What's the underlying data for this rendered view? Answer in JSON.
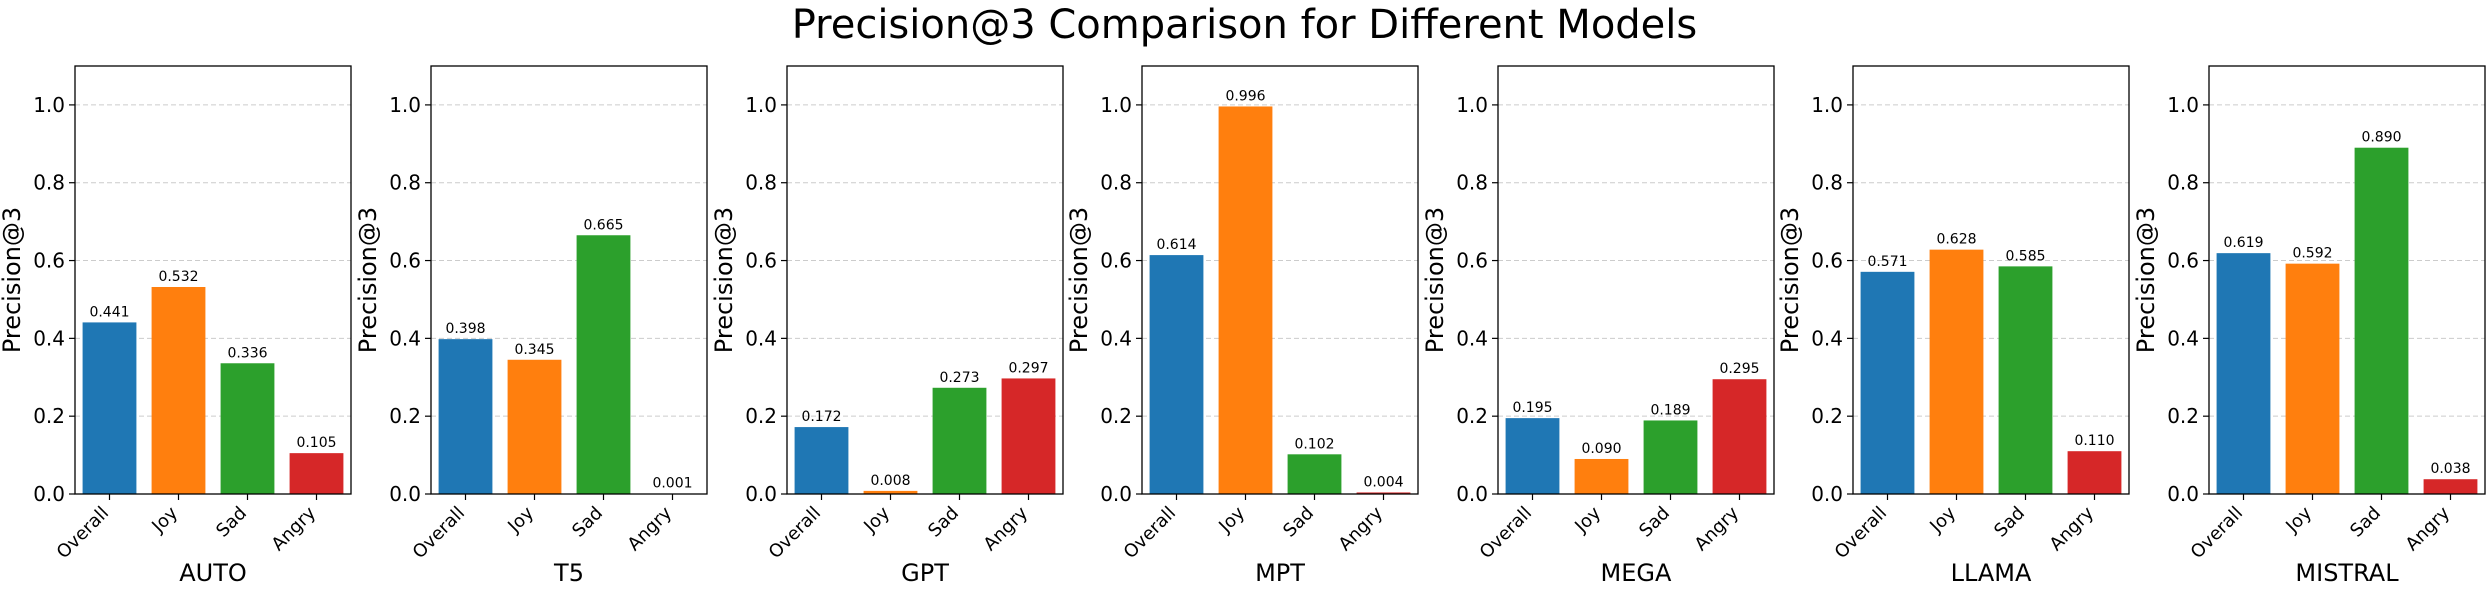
{
  "title": "Precision@3 Comparison for Different Models",
  "colors": {
    "overall": "#1f77b4",
    "joy": "#ff7f0e",
    "sad": "#2ca02c",
    "angry": "#d62728",
    "grid": "#cccccc",
    "axis": "#000000",
    "text": "#000000"
  },
  "chart_data": [
    {
      "type": "bar",
      "title": "",
      "xlabel": "AUTO",
      "ylabel": "Precision@3",
      "ylim": [
        0,
        1.1
      ],
      "yticks": [
        "0.0",
        "0.2",
        "0.4",
        "0.6",
        "0.8",
        "1.0"
      ],
      "categories": [
        "Overall",
        "Joy",
        "Sad",
        "Angry"
      ],
      "values": [
        0.441,
        0.532,
        0.336,
        0.105
      ],
      "labels": [
        "0.441",
        "0.532",
        "0.336",
        "0.105"
      ],
      "grid": "y-dashed"
    },
    {
      "type": "bar",
      "title": "",
      "xlabel": "T5",
      "ylabel": "Precision@3",
      "ylim": [
        0,
        1.1
      ],
      "yticks": [
        "0.0",
        "0.2",
        "0.4",
        "0.6",
        "0.8",
        "1.0"
      ],
      "categories": [
        "Overall",
        "Joy",
        "Sad",
        "Angry"
      ],
      "values": [
        0.398,
        0.345,
        0.665,
        0.001
      ],
      "labels": [
        "0.398",
        "0.345",
        "0.665",
        "0.001"
      ],
      "grid": "y-dashed"
    },
    {
      "type": "bar",
      "title": "",
      "xlabel": "GPT",
      "ylabel": "Precision@3",
      "ylim": [
        0,
        1.1
      ],
      "yticks": [
        "0.0",
        "0.2",
        "0.4",
        "0.6",
        "0.8",
        "1.0"
      ],
      "categories": [
        "Overall",
        "Joy",
        "Sad",
        "Angry"
      ],
      "values": [
        0.172,
        0.008,
        0.273,
        0.297
      ],
      "labels": [
        "0.172",
        "0.008",
        "0.273",
        "0.297"
      ],
      "grid": "y-dashed"
    },
    {
      "type": "bar",
      "title": "",
      "xlabel": "MPT",
      "ylabel": "Precision@3",
      "ylim": [
        0,
        1.1
      ],
      "yticks": [
        "0.0",
        "0.2",
        "0.4",
        "0.6",
        "0.8",
        "1.0"
      ],
      "categories": [
        "Overall",
        "Joy",
        "Sad",
        "Angry"
      ],
      "values": [
        0.614,
        0.996,
        0.102,
        0.004
      ],
      "labels": [
        "0.614",
        "0.996",
        "0.102",
        "0.004"
      ],
      "grid": "y-dashed"
    },
    {
      "type": "bar",
      "title": "",
      "xlabel": "MEGA",
      "ylabel": "Precision@3",
      "ylim": [
        0,
        1.1
      ],
      "yticks": [
        "0.0",
        "0.2",
        "0.4",
        "0.6",
        "0.8",
        "1.0"
      ],
      "categories": [
        "Overall",
        "Joy",
        "Sad",
        "Angry"
      ],
      "values": [
        0.195,
        0.09,
        0.189,
        0.295
      ],
      "labels": [
        "0.195",
        "0.090",
        "0.189",
        "0.295"
      ],
      "grid": "y-dashed"
    },
    {
      "type": "bar",
      "title": "",
      "xlabel": "LLAMA",
      "ylabel": "Precision@3",
      "ylim": [
        0,
        1.1
      ],
      "yticks": [
        "0.0",
        "0.2",
        "0.4",
        "0.6",
        "0.8",
        "1.0"
      ],
      "categories": [
        "Overall",
        "Joy",
        "Sad",
        "Angry"
      ],
      "values": [
        0.571,
        0.628,
        0.585,
        0.11
      ],
      "labels": [
        "0.571",
        "0.628",
        "0.585",
        "0.110"
      ],
      "grid": "y-dashed"
    },
    {
      "type": "bar",
      "title": "",
      "xlabel": "MISTRAL",
      "ylabel": "Precision@3",
      "ylim": [
        0,
        1.1
      ],
      "yticks": [
        "0.0",
        "0.2",
        "0.4",
        "0.6",
        "0.8",
        "1.0"
      ],
      "categories": [
        "Overall",
        "Joy",
        "Sad",
        "Angry"
      ],
      "values": [
        0.619,
        0.592,
        0.89,
        0.038
      ],
      "labels": [
        "0.619",
        "0.592",
        "0.890",
        "0.038"
      ],
      "grid": "y-dashed"
    }
  ]
}
